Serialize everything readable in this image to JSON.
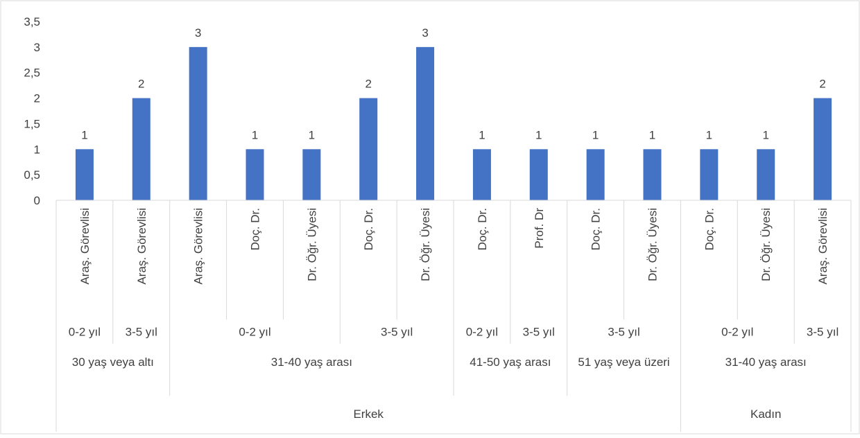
{
  "colors": {
    "bar": "#4472C4",
    "gridline": "#D9D9D9",
    "axis_text": "#404040",
    "border": "#D9D9D9"
  },
  "chart_data": {
    "type": "bar",
    "title": "",
    "xlabel": "",
    "ylabel": "",
    "ylim": [
      0,
      3.5
    ],
    "y_ticks": [
      "0",
      "0,5",
      "1",
      "1,5",
      "2",
      "2,5",
      "3",
      "3,5"
    ],
    "grid": false,
    "legend": "none",
    "categories": [
      "Araş. Görevlisi",
      "Araş. Görevlisi",
      "Araş. Görevlisi",
      "Doç. Dr.",
      "Dr. Öğr. Üyesi",
      "Doç. Dr.",
      "Dr. Öğr. Üyesi",
      "Doç. Dr.",
      "Prof. Dr",
      "Doç. Dr.",
      "Dr. Öğr. Üyesi",
      "Doç. Dr.",
      "Dr. Öğr. Üyesi",
      "Araş. Görevlisi"
    ],
    "values": [
      1,
      2,
      3,
      1,
      1,
      2,
      3,
      1,
      1,
      1,
      1,
      1,
      1,
      2
    ],
    "data_labels": [
      "1",
      "2",
      "3",
      "1",
      "1",
      "2",
      "3",
      "1",
      "1",
      "1",
      "1",
      "1",
      "1",
      "2"
    ],
    "experience_groups": [
      {
        "label": "0-2 yıl",
        "span": 1
      },
      {
        "label": "3-5 yıl",
        "span": 1
      },
      {
        "label": "0-2 yıl",
        "span": 3
      },
      {
        "label": "3-5 yıl",
        "span": 2
      },
      {
        "label": "0-2 yıl",
        "span": 1
      },
      {
        "label": "3-5 yıl",
        "span": 1
      },
      {
        "label": "3-5 yıl",
        "span": 2
      },
      {
        "label": "0-2 yıl",
        "span": 2
      },
      {
        "label": "3-5 yıl",
        "span": 1
      }
    ],
    "age_groups": [
      {
        "label": "30 yaş veya altı",
        "span": 2
      },
      {
        "label": "31-40 yaş arası",
        "span": 5
      },
      {
        "label": "41-50 yaş arası",
        "span": 2
      },
      {
        "label": "51 yaş veya üzeri",
        "span": 2
      },
      {
        "label": "31-40 yaş arası",
        "span": 3
      }
    ],
    "gender_groups": [
      {
        "label": "Erkek",
        "span": 11
      },
      {
        "label": "Kadın",
        "span": 3
      }
    ]
  }
}
